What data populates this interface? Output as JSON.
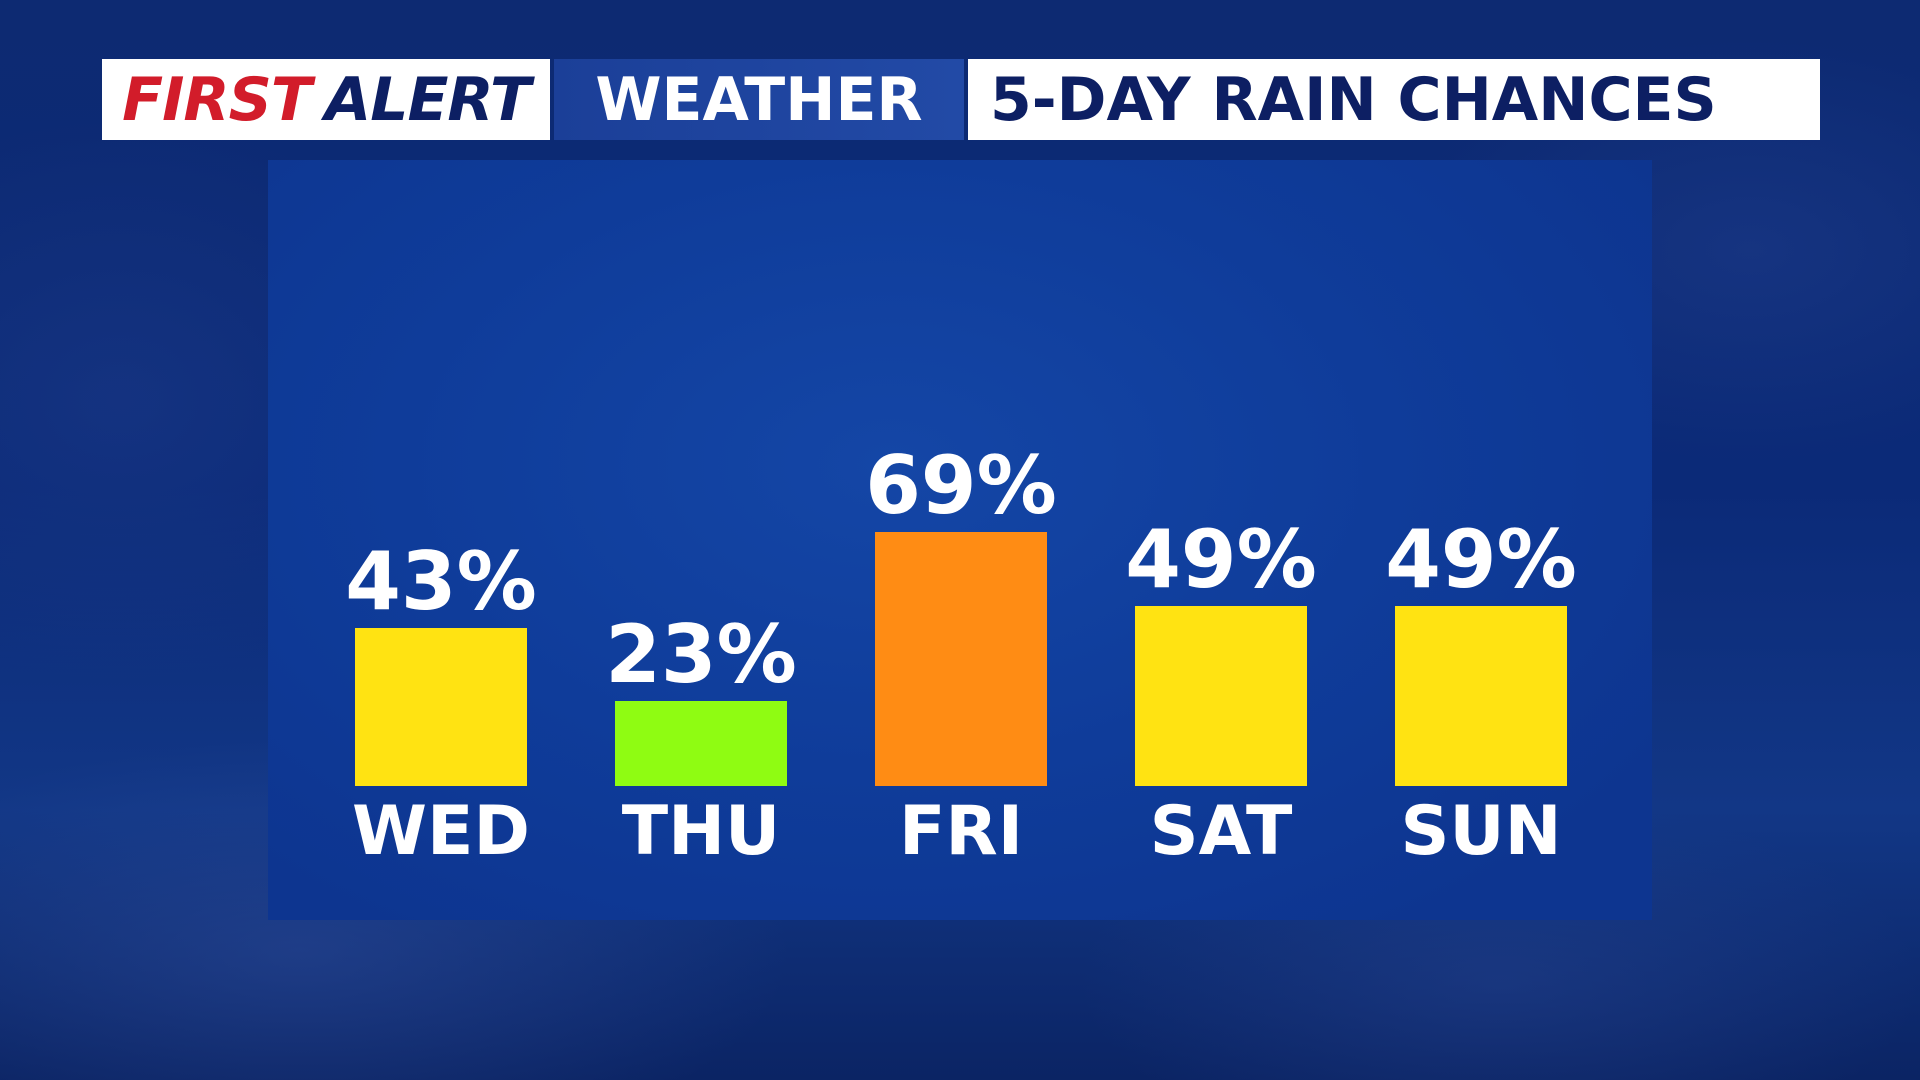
{
  "header": {
    "first": "FIRST",
    "alert": "ALERT",
    "weather": "WEATHER",
    "title": "5-DAY RAIN CHANCES"
  },
  "colors": {
    "first_red": "#d21c2a",
    "navy": "#0d1f63",
    "label_white": "#ffffff"
  },
  "chart_data": {
    "type": "bar",
    "title": "5-DAY RAIN CHANCES",
    "categories": [
      "WED",
      "THU",
      "FRI",
      "SAT",
      "SUN"
    ],
    "values": [
      43,
      23,
      69,
      49,
      49
    ],
    "value_labels": [
      "43%",
      "23%",
      "69%",
      "49%",
      "49%"
    ],
    "bar_colors": [
      "#ffe312",
      "#8ffc12",
      "#ff8c14",
      "#ffe312",
      "#ffe312"
    ],
    "xlabel": "",
    "ylabel": "",
    "ylim": [
      0,
      100
    ],
    "grid": false,
    "legend": "none"
  }
}
